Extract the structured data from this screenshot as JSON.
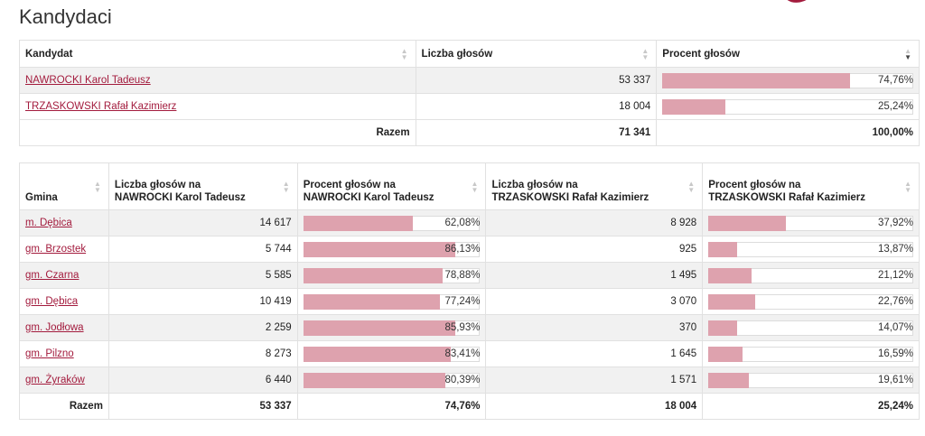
{
  "page_title": "Kandydaci",
  "colors": {
    "bar_fill": "#dea2ae",
    "link": "#a31b3d",
    "row_alt": "#f1f1f1"
  },
  "candidates_table": {
    "headers": {
      "kandydat": "Kandydat",
      "liczba": "Liczba głosów",
      "procent": "Procent głosów"
    },
    "rows": [
      {
        "name": "NAWROCKI Karol Tadeusz",
        "votes": "53 337",
        "percent": "74,76%",
        "fraction": 0.7476
      },
      {
        "name": "TRZASKOWSKI Rafał Kazimierz",
        "votes": "18 004",
        "percent": "25,24%",
        "fraction": 0.2524
      }
    ],
    "footer": {
      "label": "Razem",
      "votes": "71 341",
      "percent": "100,00%"
    }
  },
  "gmina_table": {
    "headers": {
      "gmina": "Gmina",
      "votes_a": [
        "Liczba głosów na",
        "NAWROCKI Karol Tadeusz"
      ],
      "percent_a": [
        "Procent głosów na",
        "NAWROCKI Karol Tadeusz"
      ],
      "votes_b": [
        "Liczba głosów na",
        "TRZASKOWSKI Rafał Kazimierz"
      ],
      "percent_b": [
        "Procent głosów na",
        "TRZASKOWSKI Rafał Kazimierz"
      ]
    },
    "rows": [
      {
        "gmina": "m. Dębica",
        "votes_a": "14 617",
        "percent_a": "62,08%",
        "fraction_a": 0.6208,
        "votes_b": "8 928",
        "percent_b": "37,92%",
        "fraction_b": 0.3792
      },
      {
        "gmina": "gm. Brzostek",
        "votes_a": "5 744",
        "percent_a": "86,13%",
        "fraction_a": 0.8613,
        "votes_b": "925",
        "percent_b": "13,87%",
        "fraction_b": 0.1387
      },
      {
        "gmina": "gm. Czarna",
        "votes_a": "5 585",
        "percent_a": "78,88%",
        "fraction_a": 0.7888,
        "votes_b": "1 495",
        "percent_b": "21,12%",
        "fraction_b": 0.2112
      },
      {
        "gmina": "gm. Dębica",
        "votes_a": "10 419",
        "percent_a": "77,24%",
        "fraction_a": 0.7724,
        "votes_b": "3 070",
        "percent_b": "22,76%",
        "fraction_b": 0.2276
      },
      {
        "gmina": "gm. Jodłowa",
        "votes_a": "2 259",
        "percent_a": "85,93%",
        "fraction_a": 0.8593,
        "votes_b": "370",
        "percent_b": "14,07%",
        "fraction_b": 0.1407
      },
      {
        "gmina": "gm. Pilzno",
        "votes_a": "8 273",
        "percent_a": "83,41%",
        "fraction_a": 0.8341,
        "votes_b": "1 645",
        "percent_b": "16,59%",
        "fraction_b": 0.1659
      },
      {
        "gmina": "gm. Żyraków",
        "votes_a": "6 440",
        "percent_a": "80,39%",
        "fraction_a": 0.8039,
        "votes_b": "1 571",
        "percent_b": "19,61%",
        "fraction_b": 0.1961
      }
    ],
    "footer": {
      "label": "Razem",
      "votes_a": "53 337",
      "percent_a": "74,76%",
      "votes_b": "18 004",
      "percent_b": "25,24%"
    }
  }
}
